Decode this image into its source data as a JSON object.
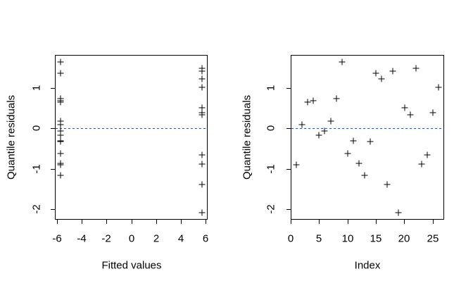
{
  "figure": {
    "background_color": "#ffffff",
    "marker_symbol": "+",
    "marker_color": "#000000",
    "axis_color": "#000000",
    "reference_line_color": "#3450d2"
  },
  "chart_data": [
    {
      "type": "scatter",
      "xlabel": "Fitted values",
      "ylabel": "Quantile residuals",
      "marker": "plus",
      "grid": false,
      "legend": "none",
      "reference_line_y": 0,
      "xlim": [
        -6.16,
        6.16
      ],
      "ylim": [
        -2.27,
        1.83
      ],
      "xticks": [
        -6,
        -4,
        -2,
        0,
        2,
        4,
        6
      ],
      "yticks": [
        -2,
        -1,
        0,
        1
      ],
      "x": [
        -5.72,
        -5.72,
        -5.72,
        -5.72,
        -5.72,
        -5.72,
        -5.72,
        -5.72,
        -5.72,
        -5.72,
        -5.72,
        -5.72,
        -5.72,
        -5.72,
        -5.72,
        5.7,
        5.7,
        5.7,
        5.7,
        5.7,
        5.7,
        5.7,
        5.7,
        5.7,
        5.7,
        5.7
      ],
      "y": [
        -0.9,
        0.09,
        0.66,
        0.7,
        -0.16,
        -0.07,
        0.19,
        0.75,
        1.66,
        -0.63,
        -0.3,
        -0.87,
        -1.16,
        -0.33,
        1.38,
        1.24,
        -1.4,
        1.43,
        -2.09,
        0.51,
        0.35,
        1.5,
        -0.89,
        -0.65,
        0.39,
        1.03
      ]
    },
    {
      "type": "scatter",
      "xlabel": "Index",
      "ylabel": "Quantile residuals",
      "marker": "plus",
      "grid": false,
      "legend": "none",
      "reference_line_y": 0,
      "xlim": [
        0,
        27
      ],
      "ylim": [
        -2.27,
        1.83
      ],
      "xticks": [
        0,
        5,
        10,
        15,
        20,
        25
      ],
      "yticks": [
        -2,
        -1,
        0,
        1
      ],
      "x": [
        1,
        2,
        3,
        4,
        5,
        6,
        7,
        8,
        9,
        10,
        11,
        12,
        13,
        14,
        15,
        16,
        17,
        18,
        19,
        20,
        21,
        22,
        23,
        24,
        25,
        26
      ],
      "y": [
        -0.9,
        0.09,
        0.66,
        0.7,
        -0.16,
        -0.07,
        0.19,
        0.75,
        1.66,
        -0.63,
        -0.3,
        -0.87,
        -1.16,
        -0.33,
        1.38,
        1.24,
        -1.4,
        1.43,
        -2.09,
        0.51,
        0.35,
        1.5,
        -0.89,
        -0.65,
        0.39,
        1.03
      ]
    }
  ]
}
